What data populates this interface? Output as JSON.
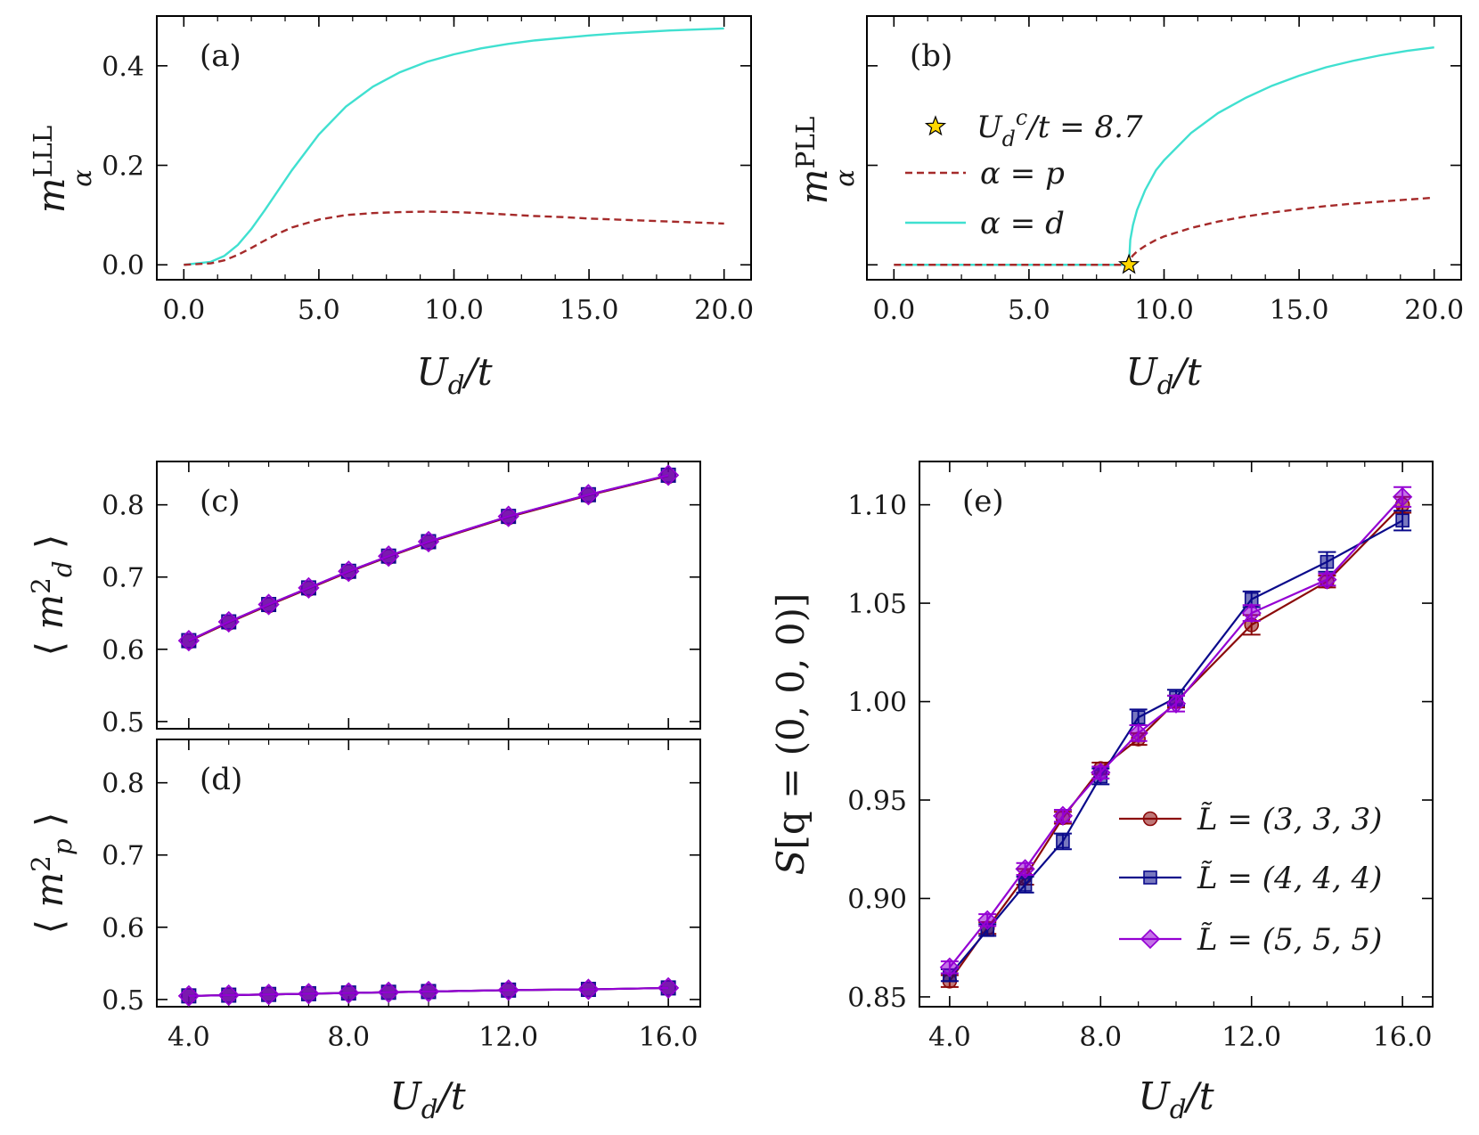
{
  "colors": {
    "cyan": "#40e0d0",
    "darkred": "#a52a2a",
    "red": "#8b0a0a",
    "navy": "#0a0a8b",
    "violet": "#9400d3",
    "star": "#ffd700"
  },
  "chart_data": [
    {
      "id": "a",
      "type": "line",
      "panel_label": "(a)",
      "xlabel": "U_d/t",
      "ylabel": "m_α^LLL",
      "xlim": [
        -1.0,
        21.0
      ],
      "ylim": [
        -0.03,
        0.5
      ],
      "xticks": [
        0,
        5,
        10,
        15,
        20
      ],
      "xtick_labels": [
        "0.0",
        "5.0",
        "10.0",
        "15.0",
        "20.0"
      ],
      "yticks": [
        0.0,
        0.2,
        0.4
      ],
      "ytick_labels": [
        "0.0",
        "0.2",
        "0.4"
      ],
      "series": [
        {
          "key": "d",
          "color": "cyan",
          "dashed": false,
          "x": [
            0,
            1,
            1.5,
            2,
            2.5,
            3,
            3.5,
            4,
            5,
            6,
            7,
            8,
            9,
            10,
            11,
            12,
            13,
            14,
            15,
            16,
            17,
            18,
            19,
            20
          ],
          "y": [
            0.0,
            0.006,
            0.018,
            0.04,
            0.072,
            0.11,
            0.15,
            0.19,
            0.262,
            0.318,
            0.358,
            0.387,
            0.408,
            0.423,
            0.435,
            0.444,
            0.451,
            0.456,
            0.461,
            0.465,
            0.468,
            0.471,
            0.473,
            0.475
          ]
        },
        {
          "key": "p",
          "color": "darkred",
          "dashed": true,
          "x": [
            0,
            1,
            1.5,
            2,
            2.5,
            3,
            3.5,
            4,
            5,
            6,
            7,
            8,
            9,
            10,
            11,
            12,
            13,
            14,
            15,
            16,
            17,
            18,
            19,
            20
          ],
          "y": [
            0.0,
            0.003,
            0.009,
            0.02,
            0.034,
            0.049,
            0.063,
            0.075,
            0.091,
            0.1,
            0.104,
            0.106,
            0.107,
            0.106,
            0.104,
            0.101,
            0.098,
            0.096,
            0.093,
            0.091,
            0.089,
            0.087,
            0.085,
            0.083
          ]
        }
      ]
    },
    {
      "id": "b",
      "type": "line",
      "panel_label": "(b)",
      "xlabel": "U_d/t",
      "ylabel": "m_α^PLL",
      "xlim": [
        -1.0,
        21.0
      ],
      "ylim": [
        -0.03,
        0.5
      ],
      "xticks": [
        0,
        5,
        10,
        15,
        20
      ],
      "xtick_labels": [
        "0.0",
        "5.0",
        "10.0",
        "15.0",
        "20.0"
      ],
      "yticks": [
        0.0,
        0.2,
        0.4
      ],
      "ytick_labels": [],
      "critical_point": {
        "x": 8.7,
        "y": 0.0
      },
      "legend": {
        "star": "U_d^c/t = 8.7",
        "p": "α = p",
        "d": "α = d"
      },
      "series": [
        {
          "key": "d",
          "color": "cyan",
          "dashed": false,
          "x": [
            0,
            8.7,
            8.75,
            8.85,
            9.0,
            9.3,
            9.7,
            10,
            11,
            12,
            13,
            14,
            15,
            16,
            17,
            18,
            19,
            20
          ],
          "y": [
            0.0,
            0.0,
            0.05,
            0.08,
            0.11,
            0.15,
            0.19,
            0.21,
            0.265,
            0.305,
            0.335,
            0.36,
            0.38,
            0.397,
            0.41,
            0.421,
            0.43,
            0.437
          ]
        },
        {
          "key": "p",
          "color": "darkred",
          "dashed": true,
          "x": [
            0,
            8.7,
            8.75,
            8.85,
            9.0,
            9.3,
            9.7,
            10,
            11,
            12,
            13,
            14,
            15,
            16,
            17,
            18,
            19,
            20
          ],
          "y": [
            0.0,
            0.0,
            0.012,
            0.019,
            0.027,
            0.038,
            0.05,
            0.057,
            0.074,
            0.087,
            0.097,
            0.105,
            0.112,
            0.118,
            0.123,
            0.127,
            0.131,
            0.135
          ]
        }
      ]
    },
    {
      "id": "c",
      "type": "line",
      "panel_label": "(c)",
      "ylabel": "⟨m_d^2⟩",
      "xlim": [
        3.2,
        16.8
      ],
      "ylim": [
        0.49,
        0.86
      ],
      "xticks": [
        4,
        8,
        12,
        16
      ],
      "yticks": [
        0.5,
        0.6,
        0.7,
        0.8
      ],
      "ytick_labels": [
        "0.5",
        "0.6",
        "0.7",
        "0.8"
      ],
      "x": [
        4,
        5,
        6,
        7,
        8,
        9,
        10,
        12,
        14,
        16
      ],
      "series": [
        {
          "key": "L3",
          "color": "red",
          "marker": "circle",
          "y": [
            0.611,
            0.637,
            0.661,
            0.684,
            0.707,
            0.728,
            0.748,
            0.783,
            0.813,
            0.84
          ]
        },
        {
          "key": "L4",
          "color": "navy",
          "marker": "square",
          "y": [
            0.612,
            0.638,
            0.662,
            0.685,
            0.708,
            0.729,
            0.749,
            0.784,
            0.814,
            0.841
          ]
        },
        {
          "key": "L5",
          "color": "violet",
          "marker": "diamond",
          "y": [
            0.612,
            0.638,
            0.662,
            0.685,
            0.708,
            0.729,
            0.749,
            0.784,
            0.814,
            0.841
          ]
        }
      ]
    },
    {
      "id": "d",
      "type": "line",
      "panel_label": "(d)",
      "xlabel": "U_d/t",
      "ylabel": "⟨m_p^2⟩",
      "xlim": [
        3.2,
        16.8
      ],
      "ylim": [
        0.49,
        0.86
      ],
      "xticks": [
        4,
        8,
        12,
        16
      ],
      "xtick_labels": [
        "4.0",
        "8.0",
        "12.0",
        "16.0"
      ],
      "yticks": [
        0.5,
        0.6,
        0.7,
        0.8
      ],
      "ytick_labels": [
        "0.5",
        "0.6",
        "0.7",
        "0.8"
      ],
      "x": [
        4,
        5,
        6,
        7,
        8,
        9,
        10,
        12,
        14,
        16
      ],
      "series": [
        {
          "key": "L3",
          "color": "red",
          "marker": "circle",
          "y": [
            0.505,
            0.506,
            0.507,
            0.508,
            0.509,
            0.51,
            0.511,
            0.513,
            0.514,
            0.516
          ]
        },
        {
          "key": "L4",
          "color": "navy",
          "marker": "square",
          "y": [
            0.505,
            0.506,
            0.507,
            0.508,
            0.509,
            0.51,
            0.511,
            0.513,
            0.514,
            0.516
          ]
        },
        {
          "key": "L5",
          "color": "violet",
          "marker": "diamond",
          "y": [
            0.505,
            0.506,
            0.507,
            0.508,
            0.509,
            0.51,
            0.511,
            0.513,
            0.514,
            0.516
          ]
        }
      ]
    },
    {
      "id": "e",
      "type": "line",
      "panel_label": "(e)",
      "xlabel": "U_d/t",
      "ylabel": "S[q = (0, 0, 0)]",
      "xlim": [
        3.2,
        16.8
      ],
      "ylim": [
        0.845,
        1.122
      ],
      "xticks": [
        4,
        8,
        12,
        16
      ],
      "xtick_labels": [
        "4.0",
        "8.0",
        "12.0",
        "16.0"
      ],
      "yticks": [
        0.85,
        0.9,
        0.95,
        1.0,
        1.05,
        1.1
      ],
      "ytick_labels": [
        "0.85",
        "0.90",
        "0.95",
        "1.00",
        "1.05",
        "1.10"
      ],
      "x": [
        4,
        5,
        6,
        7,
        8,
        9,
        10,
        12,
        14,
        16
      ],
      "series": [
        {
          "key": "L3",
          "name": "L̃ = (3, 3, 3)",
          "color": "red",
          "marker": "circle",
          "y": [
            0.858,
            0.885,
            0.911,
            0.941,
            0.966,
            0.981,
            1.0,
            1.039,
            1.061,
            1.1
          ],
          "err": [
            0.003,
            0.003,
            0.004,
            0.003,
            0.003,
            0.003,
            0.003,
            0.005,
            0.003,
            0.004
          ]
        },
        {
          "key": "L4",
          "name": "L̃ = (4, 4, 4)",
          "color": "navy",
          "marker": "square",
          "y": [
            0.861,
            0.884,
            0.907,
            0.929,
            0.962,
            0.992,
            1.002,
            1.052,
            1.071,
            1.092
          ],
          "err": [
            0.003,
            0.003,
            0.004,
            0.004,
            0.004,
            0.004,
            0.004,
            0.004,
            0.005,
            0.005
          ]
        },
        {
          "key": "L5",
          "name": "L̃ = (5, 5, 5)",
          "color": "violet",
          "marker": "diamond",
          "y": [
            0.865,
            0.889,
            0.915,
            0.942,
            0.964,
            0.984,
            0.999,
            1.045,
            1.062,
            1.104
          ],
          "err": [
            0.003,
            0.003,
            0.003,
            0.003,
            0.003,
            0.004,
            0.004,
            0.004,
            0.003,
            0.005
          ]
        }
      ]
    }
  ]
}
